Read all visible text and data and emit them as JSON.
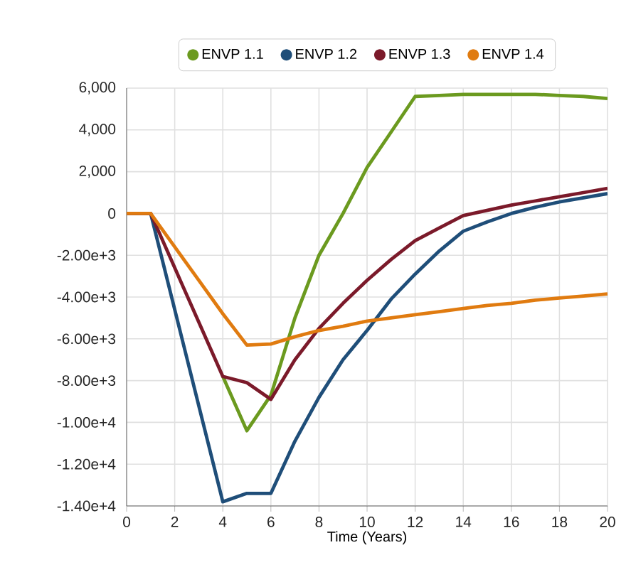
{
  "chart_data": {
    "type": "line",
    "xlabel": "Time (Years)",
    "x": [
      0,
      1,
      2,
      3,
      4,
      5,
      6,
      7,
      8,
      9,
      10,
      11,
      12,
      13,
      14,
      15,
      16,
      17,
      18,
      19,
      20
    ],
    "series": [
      {
        "name": "ENVP 1.1",
        "color": "#6b9a1f",
        "values": [
          null,
          null,
          null,
          null,
          -7800,
          -10400,
          -8700,
          -5000,
          -2000,
          0,
          2200,
          3900,
          5600,
          5650,
          5700,
          5700,
          5700,
          5700,
          5650,
          5600,
          5500
        ]
      },
      {
        "name": "ENVP 1.2",
        "color": "#1f4e79",
        "values": [
          0,
          0,
          -4600,
          -9200,
          -13800,
          -13400,
          -13400,
          -10900,
          -8800,
          -7000,
          -5600,
          -4100,
          -2900,
          -1800,
          -850,
          -400,
          0,
          300,
          550,
          750,
          950
        ]
      },
      {
        "name": "ENVP 1.3",
        "color": "#7b1a2a",
        "values": [
          0,
          0,
          -2600,
          -5200,
          -7800,
          -8100,
          -8900,
          -7000,
          -5500,
          -4300,
          -3200,
          -2200,
          -1300,
          -700,
          -100,
          150,
          400,
          600,
          800,
          1000,
          1200
        ]
      },
      {
        "name": "ENVP 1.4",
        "color": "#e07b10",
        "values": [
          0,
          0,
          -1600,
          -3200,
          -4800,
          -6300,
          -6250,
          -5900,
          -5600,
          -5400,
          -5150,
          -5000,
          -4850,
          -4700,
          -4550,
          -4400,
          -4300,
          -4150,
          -4050,
          -3950,
          -3850
        ]
      }
    ],
    "xlim": [
      0,
      20
    ],
    "xticks": [
      0,
      2,
      4,
      6,
      8,
      10,
      12,
      14,
      16,
      18,
      20
    ],
    "ylim": [
      -14000,
      6000
    ],
    "yticks": [
      {
        "value": 6000,
        "label": "6,000"
      },
      {
        "value": 4000,
        "label": "4,000"
      },
      {
        "value": 2000,
        "label": "2,000"
      },
      0,
      {
        "value": -2000,
        "label": "-2.00e+3"
      },
      {
        "value": -4000,
        "label": "-4.00e+3"
      },
      {
        "value": -6000,
        "label": "-6.00e+3"
      },
      {
        "value": -8000,
        "label": "-8.00e+3"
      },
      {
        "value": -10000,
        "label": "-1.00e+4"
      },
      {
        "value": -12000,
        "label": "-1.20e+4"
      },
      {
        "value": -14000,
        "label": "-1.40e+4"
      }
    ],
    "grid": true,
    "legend": "top",
    "marker": "none",
    "line_style": "solid"
  }
}
